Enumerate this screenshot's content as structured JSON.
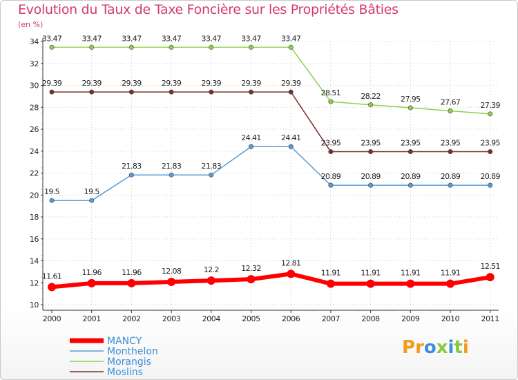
{
  "title": "Evolution du Taux de Taxe Foncière sur les Propriétés Bâties",
  "unit_label": "(en %)",
  "logo_text": "Proxiti",
  "chart_data": {
    "type": "line",
    "title": "Evolution du Taux de Taxe Foncière sur les Propriétés Bâties",
    "ylabel": "(en %)",
    "xlabel": "",
    "ylim": [
      10,
      34
    ],
    "yticks": [
      10,
      12,
      14,
      16,
      18,
      20,
      22,
      24,
      26,
      28,
      30,
      32,
      34
    ],
    "categories": [
      "2000",
      "2001",
      "2002",
      "2003",
      "2004",
      "2005",
      "2006",
      "2007",
      "2008",
      "2009",
      "2010",
      "2011"
    ],
    "series": [
      {
        "name": "Morangis",
        "color": "#8cd14a",
        "values": [
          33.47,
          33.47,
          33.47,
          33.47,
          33.47,
          33.47,
          33.47,
          28.51,
          28.22,
          27.95,
          27.67,
          27.39
        ],
        "labels": [
          "33.47",
          "33.47",
          "33.47",
          "33.47",
          "33.47",
          "33.47",
          "33.47",
          "28.51",
          "28.22",
          "27.95",
          "27.67",
          "27.39"
        ]
      },
      {
        "name": "Moslins",
        "color": "#7a2e2e",
        "values": [
          29.39,
          29.39,
          29.39,
          29.39,
          29.39,
          29.39,
          29.39,
          23.95,
          23.95,
          23.95,
          23.95,
          23.95
        ],
        "labels": [
          "29.39",
          "29.39",
          "29.39",
          "29.39",
          "29.39",
          "29.39",
          "29.39",
          "23.95",
          "23.95",
          "23.95",
          "23.95",
          "23.95"
        ]
      },
      {
        "name": "Monthelon",
        "color": "#5b9bd5",
        "values": [
          19.5,
          19.5,
          21.83,
          21.83,
          21.83,
          24.41,
          24.41,
          20.89,
          20.89,
          20.89,
          20.89,
          20.89
        ],
        "labels": [
          "19.5",
          "19.5",
          "21.83",
          "21.83",
          "21.83",
          "24.41",
          "24.41",
          "20.89",
          "20.89",
          "20.89",
          "20.89",
          "20.89"
        ]
      },
      {
        "name": "MANCY",
        "color": "#ff0000",
        "values": [
          11.61,
          11.96,
          11.96,
          12.08,
          12.2,
          12.32,
          12.81,
          11.91,
          11.91,
          11.91,
          11.91,
          12.51
        ],
        "labels": [
          "11.61",
          "11.96",
          "11.96",
          "12.08",
          "12.2",
          "12.32",
          "12.81",
          "11.91",
          "11.91",
          "11.91",
          "11.91",
          "12.51"
        ]
      }
    ],
    "legend": {
      "position": "bottom-left",
      "items": [
        "MANCY",
        "Monthelon",
        "Morangis",
        "Moslins"
      ]
    }
  }
}
